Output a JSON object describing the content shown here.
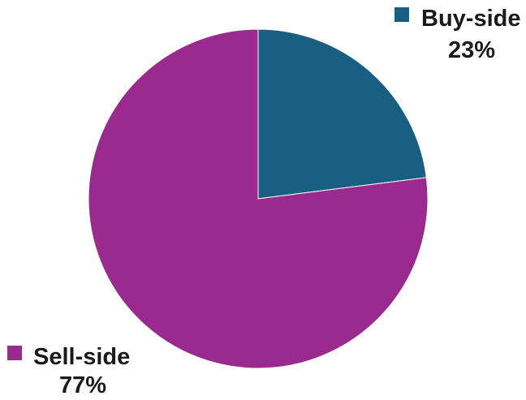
{
  "chart_data": {
    "type": "pie",
    "title": "",
    "start_angle_deg": 0,
    "direction": "clockwise",
    "slices": [
      {
        "label": "Buy-side",
        "value": 23,
        "value_label": "23%",
        "color": "#185f82"
      },
      {
        "label": "Sell-side",
        "value": 77,
        "value_label": "77%",
        "color": "#9b2a8e"
      }
    ]
  }
}
